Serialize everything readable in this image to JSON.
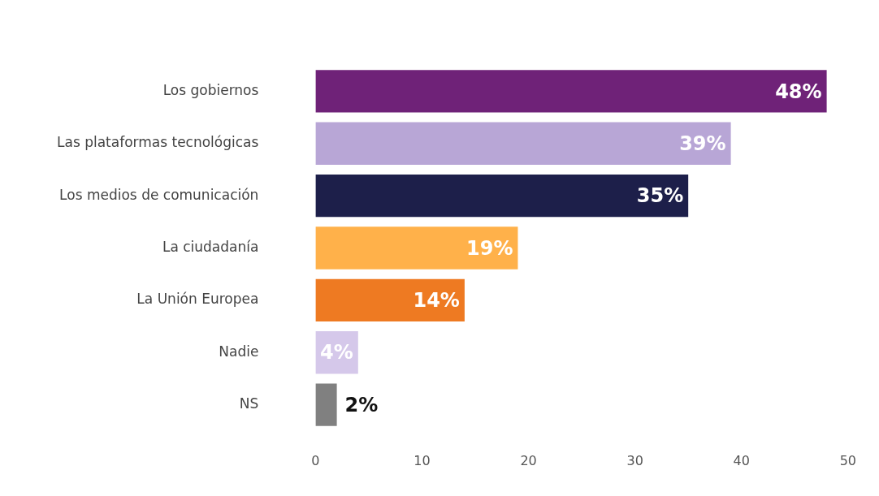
{
  "chart_data": {
    "type": "bar",
    "orientation": "horizontal",
    "categories": [
      "Los gobiernos",
      "Las plataformas tecnológicas",
      "Los medios de comunicación",
      "La ciudadanía",
      "La Unión Europea",
      "Nadie",
      "NS"
    ],
    "values": [
      48,
      39,
      35,
      19,
      14,
      4,
      2
    ],
    "colors": [
      "#6f2278",
      "#b8a6d6",
      "#1d1f4a",
      "#ffb14a",
      "#ee7a22",
      "#d5c8ea",
      "#808080"
    ],
    "value_labels": [
      "48%",
      "39%",
      "35%",
      "19%",
      "14%",
      "4%",
      "2%"
    ],
    "xlim": [
      0,
      50
    ],
    "xticks": [
      0,
      10,
      20,
      30,
      40,
      50
    ],
    "grid": false,
    "legend": false
  }
}
